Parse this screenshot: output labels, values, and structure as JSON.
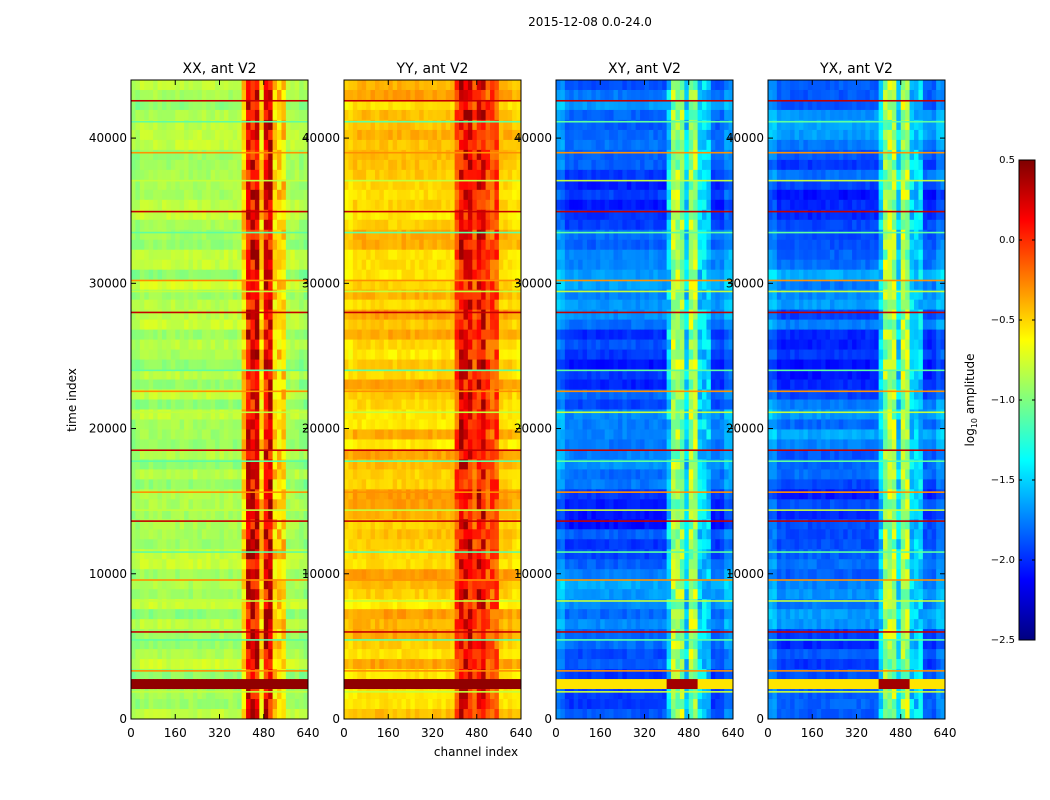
{
  "chart_data": {
    "type": "heatmap",
    "title": "2015-12-08 0.0-24.0",
    "xlabel": "channel index",
    "ylabel": "time index",
    "xlim": [
      0,
      640
    ],
    "ylim": [
      0,
      44000
    ],
    "x_ticks": [
      "0",
      "160",
      "320",
      "480",
      "640"
    ],
    "y_ticks": [
      "0",
      "10000",
      "20000",
      "30000",
      "40000"
    ],
    "panels": [
      {
        "title": "XX, ant V2",
        "base_level": -0.85,
        "band_level": 0.15,
        "cross": false
      },
      {
        "title": "YY, ant V2",
        "base_level": -0.45,
        "band_level": 0.15,
        "cross": false
      },
      {
        "title": "XY, ant V2",
        "base_level": -1.85,
        "band_level": -0.9,
        "cross": true
      },
      {
        "title": "YX, ant V2",
        "base_level": -1.85,
        "band_level": -0.9,
        "cross": true
      }
    ],
    "colorbar": {
      "label_prefix": "log",
      "label_sub": "10",
      "label_suffix": " amplitude",
      "range": [
        -2.5,
        0.5
      ],
      "ticks": [
        "0.5",
        "0.0",
        "−0.5",
        "−1.0",
        "−1.5",
        "−2.0",
        "−2.5"
      ],
      "colormap": "jet"
    }
  }
}
